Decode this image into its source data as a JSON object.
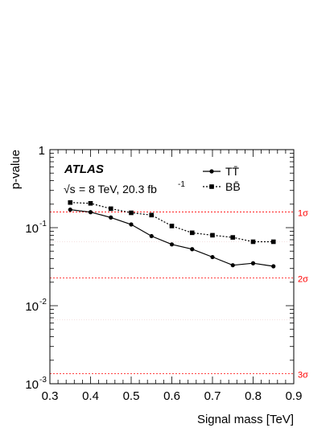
{
  "chart_data": {
    "type": "line",
    "experiment": "ATLAS",
    "energy_text": "= 8 TeV, 20.3 fb",
    "energy_superscript": "-1",
    "sqrt_s_symbol": "√s",
    "xlabel": "Signal mass [TeV]",
    "ylabel": "p-value",
    "xlim": [
      0.3,
      0.9
    ],
    "ylim": [
      0.001,
      1
    ],
    "yscale": "log",
    "x_ticks": [
      "0.3",
      "0.4",
      "0.5",
      "0.6",
      "0.7",
      "0.8",
      "0.9"
    ],
    "y_ticks": [
      {
        "value": 1,
        "base": "1",
        "exp": ""
      },
      {
        "value": 0.1,
        "base": "10",
        "exp": "-1"
      },
      {
        "value": 0.01,
        "base": "10",
        "exp": "-2"
      },
      {
        "value": 0.001,
        "base": "10",
        "exp": "-3"
      }
    ],
    "legend_position": "top-right",
    "series": [
      {
        "name": "TT̄",
        "marker": "circle",
        "line_style": "solid",
        "color": "#000000",
        "x": [
          0.35,
          0.4,
          0.45,
          0.5,
          0.55,
          0.6,
          0.65,
          0.7,
          0.75,
          0.8,
          0.85
        ],
        "y": [
          0.17,
          0.158,
          0.135,
          0.11,
          0.078,
          0.061,
          0.053,
          0.042,
          0.033,
          0.035,
          0.032
        ]
      },
      {
        "name": "BB̄",
        "marker": "square",
        "line_style": "dashed",
        "color": "#000000",
        "x": [
          0.35,
          0.4,
          0.45,
          0.5,
          0.55,
          0.6,
          0.65,
          0.7,
          0.75,
          0.8,
          0.85
        ],
        "y": [
          0.21,
          0.205,
          0.175,
          0.155,
          0.145,
          0.105,
          0.086,
          0.08,
          0.075,
          0.066,
          0.066
        ]
      }
    ],
    "sigma_lines": [
      {
        "label": "1σ",
        "p": 0.1587
      },
      {
        "label": "2σ",
        "p": 0.02275
      },
      {
        "label": "3σ",
        "p": 0.00135
      }
    ],
    "sigma_color": "#ff0000"
  }
}
